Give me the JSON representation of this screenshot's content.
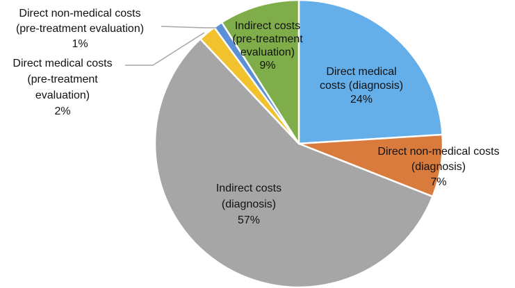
{
  "chart_data": {
    "type": "pie",
    "title": "",
    "slices": [
      {
        "label": [
          "Direct medical",
          "costs (diagnosis)",
          "24%"
        ],
        "name": "Direct medical costs (diagnosis)",
        "value": 24,
        "color": "#64aee9"
      },
      {
        "label": [
          "Direct non-medical costs",
          "(diagnosis)",
          "7%"
        ],
        "name": "Direct non-medical costs (diagnosis)",
        "value": 7,
        "color": "#d97b3c"
      },
      {
        "label": [
          "Indirect costs",
          "(diagnosis)",
          "57%"
        ],
        "name": "Indirect costs (diagnosis)",
        "value": 57,
        "color": "#a6a6a6"
      },
      {
        "label": [
          "Direct medical costs",
          "(pre-treatment",
          "evaluation)",
          "2%"
        ],
        "name": "Direct medical costs (pre-treatment evaluation)",
        "value": 2,
        "color": "#f2c12e"
      },
      {
        "label": [
          "Direct non-medical costs",
          "(pre-treatment evaluation)",
          "1%"
        ],
        "name": "Direct non-medical costs (pre-treatment evaluation)",
        "value": 1,
        "color": "#5b8fd6"
      },
      {
        "label": [
          "Indirect costs",
          "(pre-treatment",
          "evaluation)",
          "9%"
        ],
        "name": "Indirect costs (pre-treatment evaluation)",
        "value": 9,
        "color": "#7fad4a"
      }
    ]
  }
}
